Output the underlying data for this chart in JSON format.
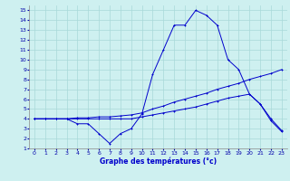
{
  "title": "Graphe des températures (°c)",
  "background_color": "#cef0f0",
  "grid_color": "#a8d8d8",
  "line_color": "#0000cc",
  "xlim": [
    -0.5,
    23.5
  ],
  "ylim": [
    1,
    15.5
  ],
  "xticks": [
    0,
    1,
    2,
    3,
    4,
    5,
    6,
    7,
    8,
    9,
    10,
    11,
    12,
    13,
    14,
    15,
    16,
    17,
    18,
    19,
    20,
    21,
    22,
    23
  ],
  "yticks": [
    1,
    2,
    3,
    4,
    5,
    6,
    7,
    8,
    9,
    10,
    11,
    12,
    13,
    14,
    15
  ],
  "curve1_x": [
    0,
    1,
    2,
    3,
    4,
    5,
    6,
    7,
    8,
    9,
    10,
    11,
    12,
    13,
    14,
    15,
    16,
    17,
    18,
    19,
    20,
    21,
    22,
    23
  ],
  "curve1_y": [
    4.0,
    4.0,
    4.0,
    4.0,
    3.5,
    3.5,
    2.5,
    1.5,
    2.5,
    3.0,
    4.5,
    8.5,
    11.0,
    13.5,
    13.5,
    15.0,
    14.5,
    13.5,
    10.0,
    9.0,
    6.5,
    5.5,
    4.0,
    2.8
  ],
  "curve2_x": [
    0,
    1,
    2,
    3,
    4,
    5,
    6,
    7,
    8,
    9,
    10,
    11,
    12,
    13,
    14,
    15,
    16,
    17,
    18,
    19,
    20,
    21,
    22,
    23
  ],
  "curve2_y": [
    4.0,
    4.0,
    4.0,
    4.0,
    4.1,
    4.1,
    4.2,
    4.2,
    4.3,
    4.4,
    4.6,
    5.0,
    5.3,
    5.7,
    6.0,
    6.3,
    6.6,
    7.0,
    7.3,
    7.6,
    8.0,
    8.3,
    8.6,
    9.0
  ],
  "curve3_x": [
    0,
    1,
    2,
    3,
    4,
    5,
    6,
    7,
    8,
    9,
    10,
    11,
    12,
    13,
    14,
    15,
    16,
    17,
    18,
    19,
    20,
    21,
    22,
    23
  ],
  "curve3_y": [
    4.0,
    4.0,
    4.0,
    4.0,
    4.0,
    4.0,
    4.0,
    4.0,
    4.0,
    4.0,
    4.2,
    4.4,
    4.6,
    4.8,
    5.0,
    5.2,
    5.5,
    5.8,
    6.1,
    6.3,
    6.5,
    5.5,
    3.8,
    2.7
  ]
}
